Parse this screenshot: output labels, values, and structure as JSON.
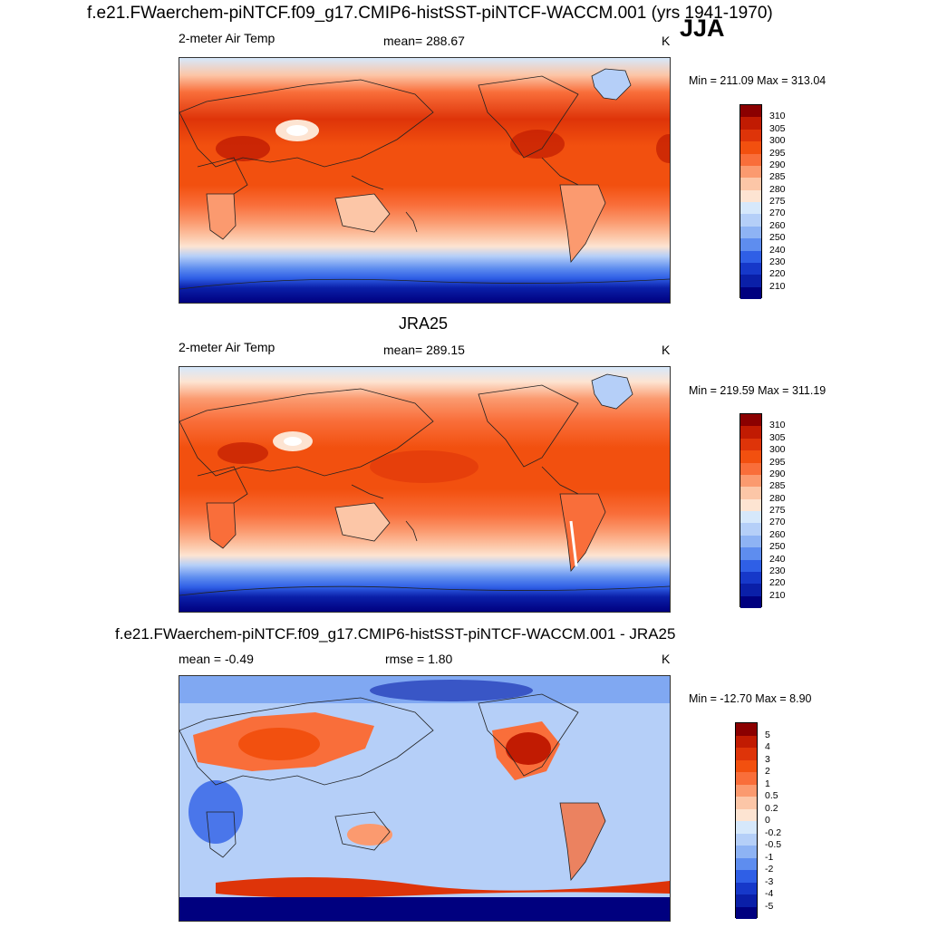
{
  "header": {
    "title": "f.e21.FWaerchem-piNTCF.f09_g17.CMIP6-histSST-piNTCF-WACCM.001 (yrs 1941-1970)",
    "season": "JJA"
  },
  "panels": [
    {
      "id": "model",
      "title": "",
      "left_label": "2-meter Air Temp",
      "center_label": "mean= 288.67",
      "right_label": "K",
      "minmax": "Min = 211.09 Max = 313.04",
      "colorbar": {
        "labels": [
          "310",
          "305",
          "300",
          "295",
          "290",
          "285",
          "280",
          "275",
          "270",
          "260",
          "250",
          "240",
          "230",
          "220",
          "210"
        ],
        "colors": [
          "#8b0000",
          "#c11b02",
          "#de3409",
          "#f2500f",
          "#f96e3a",
          "#fb9a6f",
          "#fcc6a7",
          "#fde4d2",
          "#d6e8fb",
          "#b5cff8",
          "#8eb3f4",
          "#5e8def",
          "#2f5fe6",
          "#1638c9",
          "#0a1fa8",
          "#00007f"
        ]
      }
    },
    {
      "id": "obs",
      "title": "JRA25",
      "left_label": "2-meter Air Temp",
      "center_label": "mean= 289.15",
      "right_label": "K",
      "minmax": "Min = 219.59 Max = 311.19",
      "colorbar": {
        "labels": [
          "310",
          "305",
          "300",
          "295",
          "290",
          "285",
          "280",
          "275",
          "270",
          "260",
          "250",
          "240",
          "230",
          "220",
          "210"
        ],
        "colors": [
          "#8b0000",
          "#c11b02",
          "#de3409",
          "#f2500f",
          "#f96e3a",
          "#fb9a6f",
          "#fcc6a7",
          "#fde4d2",
          "#d6e8fb",
          "#b5cff8",
          "#8eb3f4",
          "#5e8def",
          "#2f5fe6",
          "#1638c9",
          "#0a1fa8",
          "#00007f"
        ]
      }
    },
    {
      "id": "diff",
      "title": "f.e21.FWaerchem-piNTCF.f09_g17.CMIP6-histSST-piNTCF-WACCM.001 - JRA25",
      "left_label": "mean =  -0.49",
      "center_label": "rmse =   1.80",
      "right_label": "K",
      "minmax": "Min = -12.70 Max =   8.90",
      "colorbar": {
        "labels": [
          "5",
          "4",
          "3",
          "2",
          "1",
          "0.5",
          "0.2",
          "0",
          "-0.2",
          "-0.5",
          "-1",
          "-2",
          "-3",
          "-4",
          "-5"
        ],
        "colors": [
          "#8b0000",
          "#c11b02",
          "#de3409",
          "#f2500f",
          "#f96e3a",
          "#fb9a6f",
          "#fcc6a7",
          "#fde4d2",
          "#d6e8fb",
          "#b5cff8",
          "#8eb3f4",
          "#5e8def",
          "#2f5fe6",
          "#1638c9",
          "#0a1fa8",
          "#00007f"
        ]
      }
    }
  ]
}
